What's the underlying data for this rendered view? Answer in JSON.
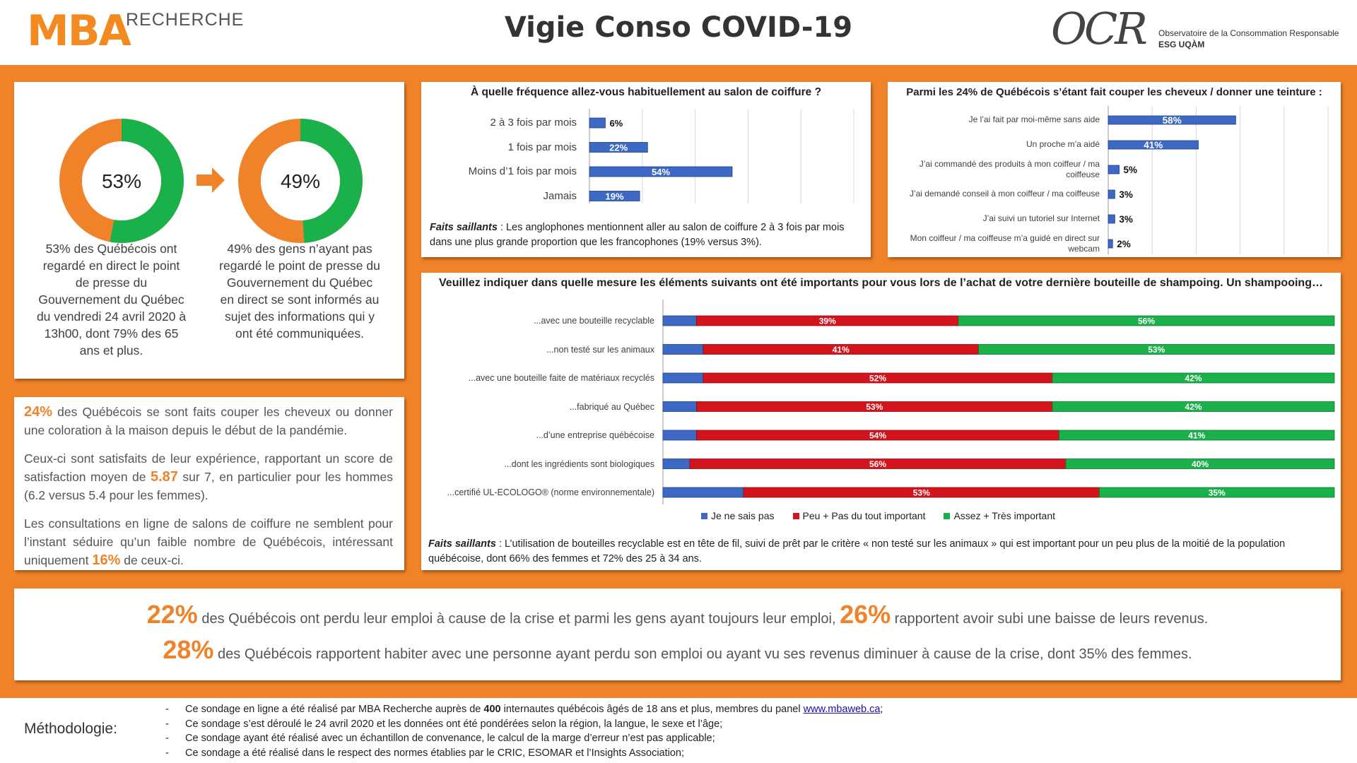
{
  "header": {
    "mba_logo": "MBA",
    "mba_sub": "RECHERCHE",
    "title": "Vigie Conso COVID-19",
    "ocr_logo": "OCR",
    "ocr_line1": "Observatoire de la Consommation Responsable",
    "ocr_line2": "ESG UQÀM"
  },
  "colors": {
    "orange": "#f0832a",
    "green": "#1ab04a",
    "blue": "#3d68c4",
    "red": "#d4141c"
  },
  "donuts": [
    {
      "value": 53,
      "label": "53%",
      "caption": "53% des Québécois ont regardé en direct le point de presse du Gouvernement du Québec du vendredi 24 avril 2020 à 13h00, dont 79% des 65 ans et plus."
    },
    {
      "value": 49,
      "label": "49%",
      "caption": "49% des gens n’ayant pas regardé le point de presse du Gouvernement du Québec en direct se sont informés au sujet des informations qui y ont été communiquées."
    }
  ],
  "left_text": {
    "p1_num": "24%",
    "p1_text": " des Québécois se sont faits couper les cheveux ou donner une coloration à la maison depuis le début de la pandémie.",
    "p2_a": "Ceux-ci sont satisfaits de leur expérience, rapportant un score de satisfaction moyen de ",
    "p2_num": "5.87",
    "p2_b": " sur 7, en particulier pour les hommes (6.2 versus 5.4 pour les femmes).",
    "p3_a": "Les consultations en ligne de salons de coiffure ne semblent pour l’instant séduire qu’un faible nombre de Québécois, intéressant uniquement ",
    "p3_num": "16%",
    "p3_b": " de ceux-ci."
  },
  "chart_data": [
    {
      "type": "bar",
      "orientation": "horizontal",
      "title": "À quelle fréquence allez-vous habituellement au salon de coiffure ?",
      "categories": [
        "2 à 3 fois par mois",
        "1 fois par mois",
        "Moins d’1 fois par mois",
        "Jamais"
      ],
      "values": [
        6,
        22,
        54,
        19
      ],
      "labels": [
        "6%",
        "22%",
        "54%",
        "19%"
      ],
      "xlim": [
        0,
        100
      ],
      "grid": true,
      "note_label": "Faits saillants",
      "note": " : Les anglophones mentionnent aller au salon de coiffure 2 à 3 fois par mois dans une plus grande proportion que les francophones (19% versus 3%)."
    },
    {
      "type": "bar",
      "orientation": "horizontal",
      "title": "Parmi les 24% de Québécois s’étant fait couper les cheveux / donner une teinture :",
      "categories": [
        "Je l’ai fait par moi-même sans aide",
        "Un proche m’a aidé",
        "J’ai commandé des produits à mon coiffeur / ma coiffeuse",
        "J’ai demandé conseil à mon coiffeur / ma coiffeuse",
        "J’ai suivi un tutoriel sur Internet",
        "Mon coiffeur / ma coiffeuse m’a guidé en direct sur webcam"
      ],
      "values": [
        58,
        41,
        5,
        3,
        3,
        2
      ],
      "labels": [
        "58%",
        "41%",
        "5%",
        "3%",
        "3%",
        "2%"
      ],
      "xlim": [
        0,
        100
      ],
      "grid": true
    },
    {
      "type": "bar",
      "orientation": "horizontal",
      "stacked": true,
      "title": "Veuillez indiquer dans quelle mesure les éléments suivants ont été importants pour vous lors de l’achat de votre dernière bouteille de shampoing. Un shampooing…",
      "categories": [
        "...avec une bouteille recyclable",
        "...non testé sur les animaux",
        "...avec une bouteille faite de matériaux recyclés",
        "...fabriqué au Québec",
        "...d’une entreprise québécoise",
        "...dont les ingrédients sont biologiques",
        "...certifié UL-ECOLOGO® (norme environnementale)"
      ],
      "series": [
        {
          "name": "Je ne sais pas",
          "values": [
            5,
            6,
            6,
            5,
            5,
            4,
            12
          ]
        },
        {
          "name": "Peu + Pas du tout important",
          "values": [
            39,
            41,
            52,
            53,
            54,
            56,
            53
          ],
          "labels": [
            "39%",
            "41%",
            "52%",
            "53%",
            "54%",
            "56%",
            "53%"
          ]
        },
        {
          "name": "Assez + Très important",
          "values": [
            56,
            53,
            42,
            42,
            41,
            40,
            35
          ],
          "labels": [
            "56%",
            "53%",
            "42%",
            "42%",
            "41%",
            "40%",
            "35%"
          ]
        }
      ],
      "legend": "bottom",
      "xlim": [
        0,
        100
      ],
      "note_label": "Faits saillants",
      "note": " : L’utilisation de bouteilles recyclable est en tête de fil, suivi de prêt par le critère « non testé sur les animaux » qui est important pour un peu plus de la moitié de la population québécoise, dont 66% des femmes et 72% des 25 à 34 ans."
    }
  ],
  "banner": {
    "n1": "22%",
    "t1": " des Québécois ont perdu leur emploi à cause de la crise et parmi les gens ayant toujours leur emploi, ",
    "n2": "26%",
    "t2": " rapportent avoir subi une baisse de leurs revenus.",
    "n3": "28%",
    "t3": " des Québécois rapportent habiter avec une personne ayant perdu son emploi ou ayant vu ses revenus diminuer à cause de la crise, dont 35% des femmes."
  },
  "methodology": {
    "label": "Méthodologie:",
    "dash": "-",
    "m1_a": "Ce sondage en ligne a été réalisé par MBA Recherche auprès de ",
    "m1_num": "400",
    "m1_b": " internautes québécois âgés de 18 ans et plus, membres du panel ",
    "m1_link": "www.mbaweb.ca",
    "m1_c": ";",
    "m2": "Ce sondage s’est déroulé le 24 avril 2020 et les données ont été pondérées selon la région, la langue, le sexe et l’âge;",
    "m3": "Ce sondage ayant été réalisé avec un échantillon de convenance, le calcul de la marge d’erreur n’est pas applicable;",
    "m4": "Ce sondage a été réalisé dans le respect des normes établies par le CRIC, ESOMAR et l’Insights Association;"
  }
}
